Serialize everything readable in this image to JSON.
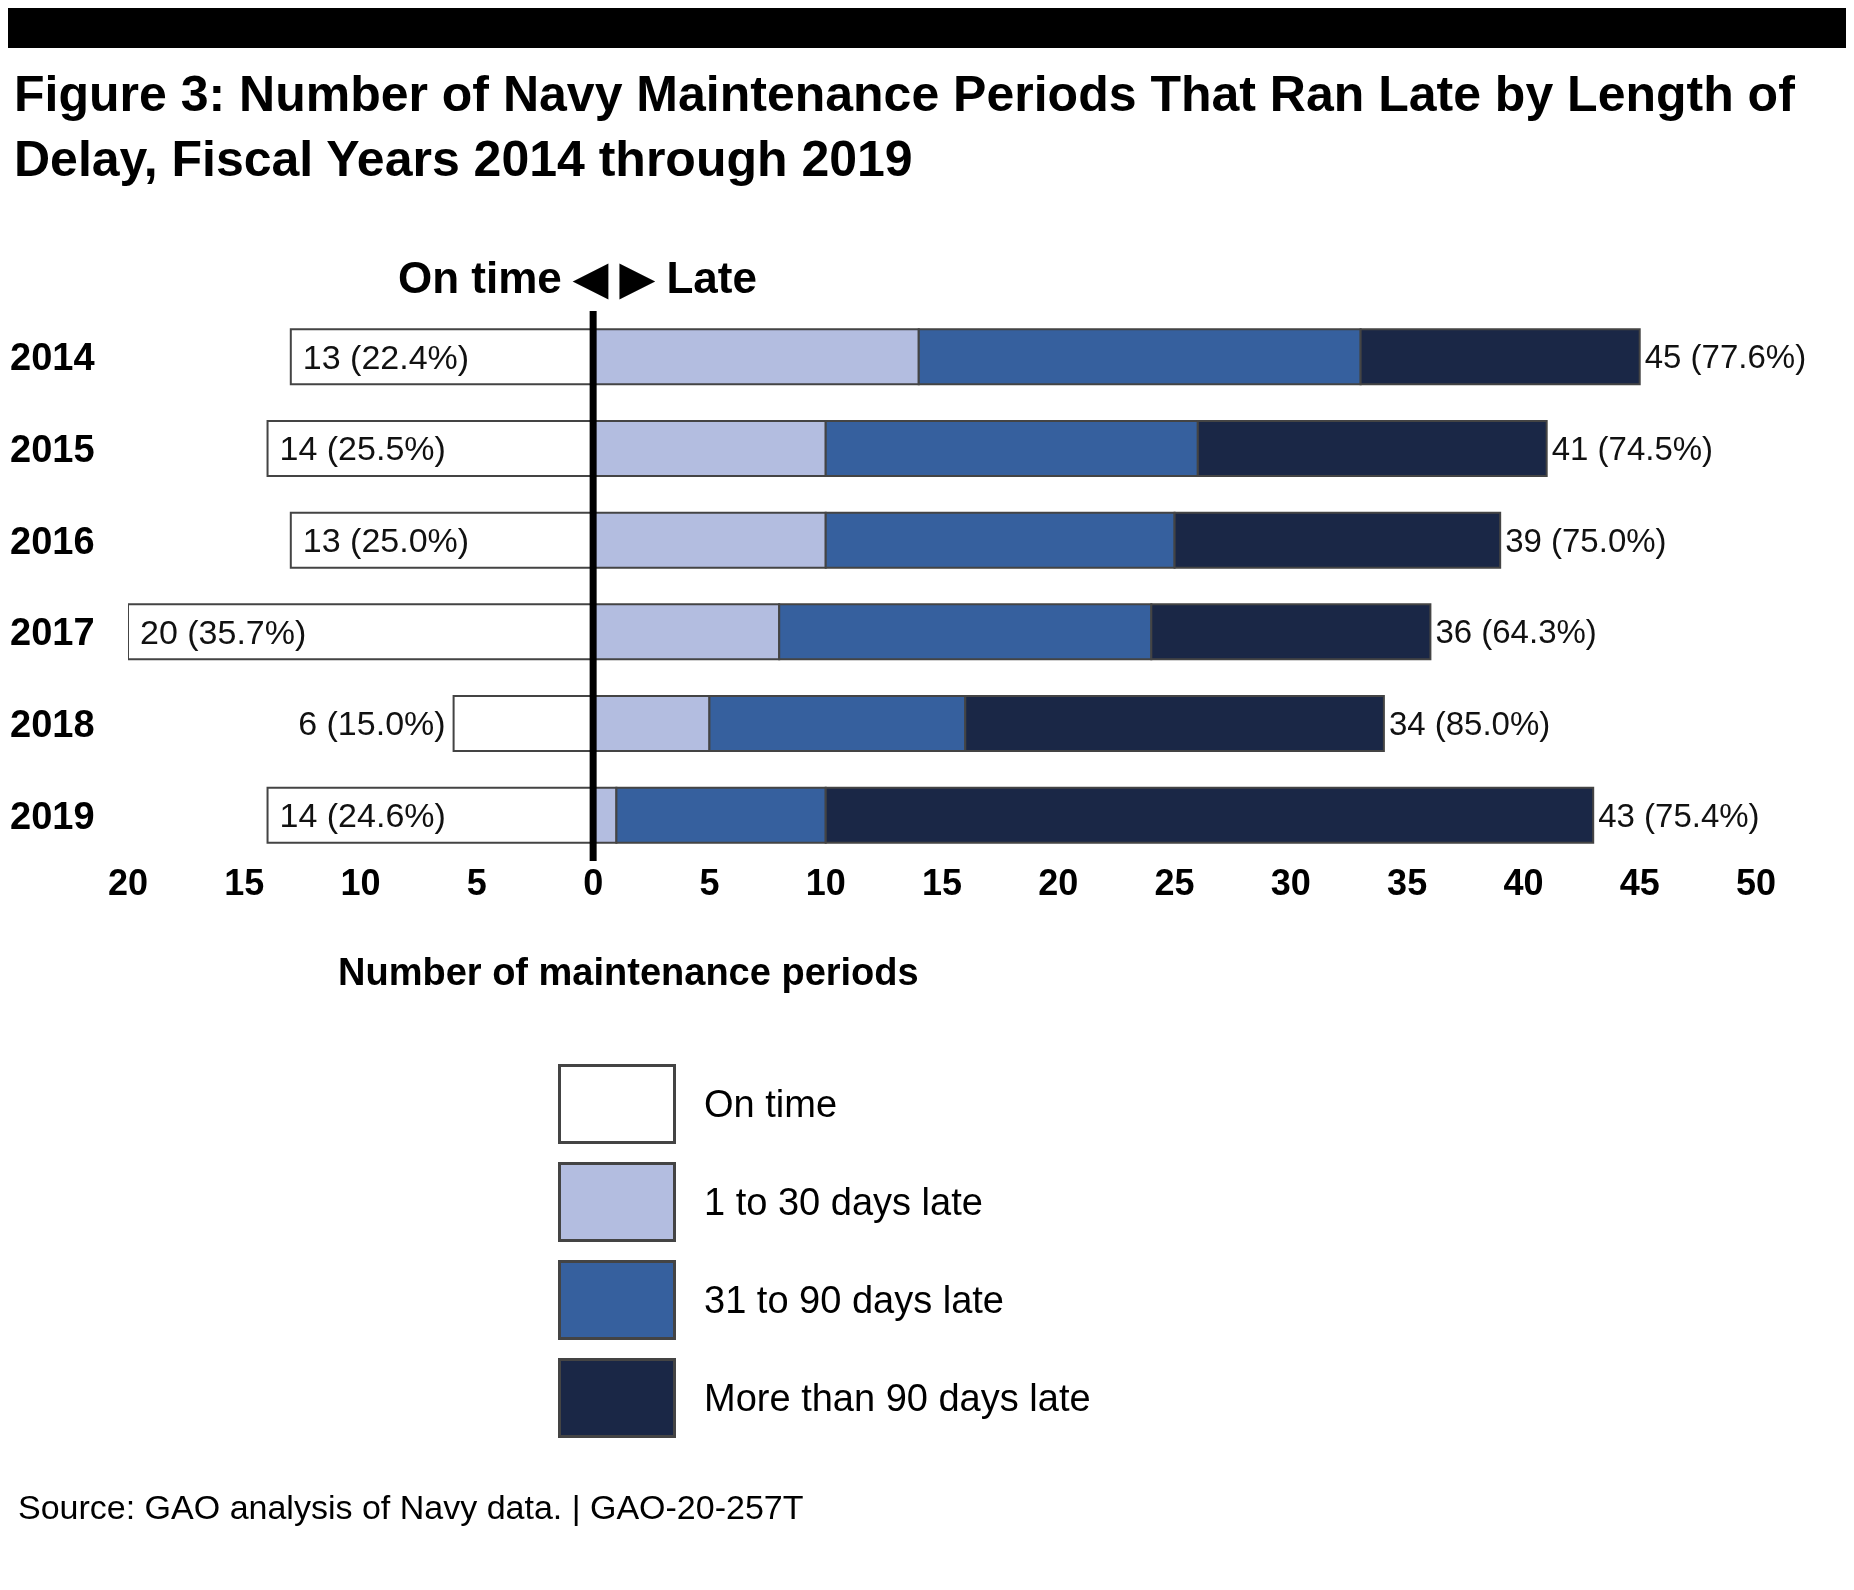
{
  "chart_data": {
    "type": "bar",
    "orientation": "horizontal",
    "stacked": true,
    "title": "Figure 3: Number of Navy Maintenance Periods That Ran Late by Length of Delay, Fiscal Years 2014 through 2019",
    "xlabel": "Number of maintenance periods",
    "annotations": [
      "On time ◀ ▶ Late",
      "Source: GAO analysis of Navy data.  |  GAO-20-257T",
      {
        "text": "13 (22.4%)",
        "x": -13,
        "y": "2014"
      },
      {
        "text": "14 (25.5%)",
        "x": -14,
        "y": "2015"
      },
      {
        "text": "13 (25.0%)",
        "x": -13,
        "y": "2016"
      },
      {
        "text": "20 (35.7%)",
        "x": -20,
        "y": "2017"
      },
      {
        "text": "6 (15.0%)",
        "x": -6,
        "y": "2018"
      },
      {
        "text": "14 (24.6%)",
        "x": -14,
        "y": "2019"
      }
    ],
    "categories": [
      "2014",
      "2015",
      "2016",
      "2017",
      "2018",
      "2019"
    ],
    "series": [
      {
        "name": "On time",
        "color": "#ffffff",
        "values": [
          -13,
          -14,
          -13,
          -20,
          -6,
          -14
        ]
      },
      {
        "name": "1 to 30 days late",
        "color": "#b3bde0",
        "values": [
          14,
          10,
          10,
          8,
          5,
          1
        ]
      },
      {
        "name": "31 to 90 days late",
        "color": "#36609e",
        "values": [
          19,
          16,
          15,
          16,
          11,
          9
        ]
      },
      {
        "name": "More than 90 days late",
        "color": "#1a2746",
        "values": [
          12,
          15,
          14,
          12,
          18,
          33
        ]
      }
    ],
    "totals": [
      "45 (77.6%)",
      "41 (74.5%)",
      "39 (75.0%)",
      "36 (64.3%)",
      "34 (85.0%)",
      "43 (75.4%)"
    ],
    "xlim": [
      -20,
      50
    ],
    "xticks": [
      {
        "value": -20,
        "label": "20"
      },
      {
        "value": -15,
        "label": "15"
      },
      {
        "value": -10,
        "label": "10"
      },
      {
        "value": -5,
        "label": "5"
      },
      0,
      5,
      10,
      15,
      20,
      25,
      30,
      35,
      40,
      45,
      50
    ],
    "ref_lines": [
      {
        "axis": "x",
        "value": 0,
        "color": "#000000"
      }
    ],
    "grid": false,
    "legend": "bottom"
  }
}
